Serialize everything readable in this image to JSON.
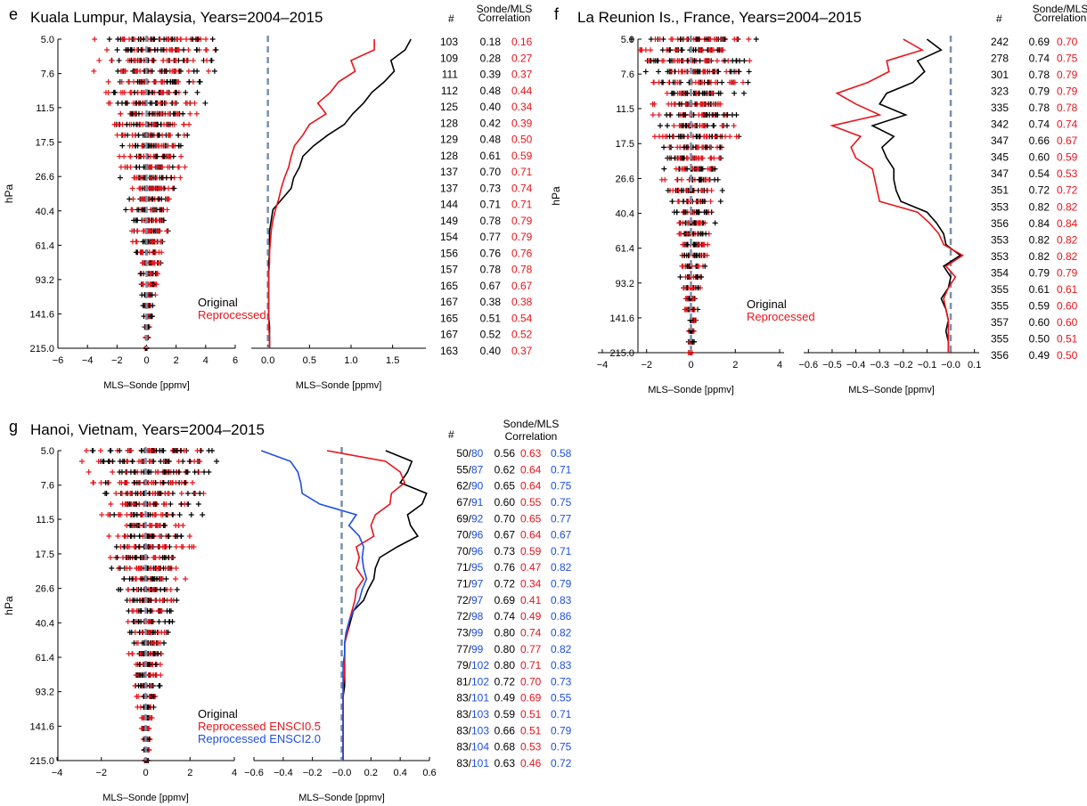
{
  "colors": {
    "original": "#000000",
    "reprocessed": "#e8141b",
    "ensci2": "#1e4fe0",
    "zero_line": "#7891aa"
  },
  "pressure_levels": [
    "5.0",
    "7.6",
    "11.5",
    "17.5",
    "26.6",
    "40.4",
    "61.4",
    "93.2",
    "141.6",
    "215.0"
  ],
  "chart_data": [
    {
      "panel": "e",
      "type": "scatter+line",
      "title": "Kuala Lumpur, Malaysia, Years=2004–2015",
      "ylabel": "hPa",
      "ylim": [
        215.0,
        5.0
      ],
      "yscale": "log",
      "scatter": {
        "xlabel": "MLS–Sonde [ppmv]",
        "xlim": [
          -6,
          6
        ],
        "xticks": [
          "−6",
          "−4",
          "−2",
          "0",
          "2",
          "4",
          "6"
        ]
      },
      "profile": {
        "xlabel": "MLS–Sonde [ppmv]",
        "xlim": [
          -0.2,
          1.9
        ],
        "xticks": [
          "0.0",
          "0.5",
          "1.0",
          "1.5"
        ],
        "xtick_values": [
          0,
          0.5,
          1.0,
          1.5
        ]
      },
      "legend": [
        "Original",
        "Reprocessed"
      ],
      "table_header": {
        "n": "#",
        "corr_1": "Sonde/MLS",
        "corr_2": "Correlation"
      },
      "rows": [
        {
          "n": "103",
          "orig": "0.18",
          "rep": "0.16"
        },
        {
          "n": "109",
          "orig": "0.28",
          "rep": "0.27"
        },
        {
          "n": "111",
          "orig": "0.39",
          "rep": "0.37"
        },
        {
          "n": "112",
          "orig": "0.48",
          "rep": "0.44"
        },
        {
          "n": "125",
          "orig": "0.40",
          "rep": "0.34"
        },
        {
          "n": "128",
          "orig": "0.42",
          "rep": "0.39"
        },
        {
          "n": "129",
          "orig": "0.48",
          "rep": "0.50"
        },
        {
          "n": "128",
          "orig": "0.61",
          "rep": "0.59"
        },
        {
          "n": "137",
          "orig": "0.70",
          "rep": "0.71"
        },
        {
          "n": "137",
          "orig": "0.73",
          "rep": "0.74"
        },
        {
          "n": "144",
          "orig": "0.71",
          "rep": "0.71"
        },
        {
          "n": "149",
          "orig": "0.78",
          "rep": "0.79"
        },
        {
          "n": "154",
          "orig": "0.77",
          "rep": "0.79"
        },
        {
          "n": "156",
          "orig": "0.76",
          "rep": "0.76"
        },
        {
          "n": "157",
          "orig": "0.78",
          "rep": "0.78"
        },
        {
          "n": "165",
          "orig": "0.67",
          "rep": "0.67"
        },
        {
          "n": "167",
          "orig": "0.38",
          "rep": "0.38"
        },
        {
          "n": "165",
          "orig": "0.51",
          "rep": "0.54"
        },
        {
          "n": "167",
          "orig": "0.52",
          "rep": "0.52"
        },
        {
          "n": "163",
          "orig": "0.40",
          "rep": "0.37"
        }
      ],
      "series": [
        {
          "name": "Original",
          "color": "black",
          "x": [
            1.72,
            1.65,
            1.48,
            1.52,
            1.4,
            1.25,
            1.15,
            1.02,
            0.92,
            0.72,
            0.55,
            0.42,
            0.38,
            0.31,
            0.28,
            0.17,
            0.06,
            0.04,
            0.02,
            0.02,
            0.02,
            0.01,
            0.01,
            0.01,
            0.01,
            0.01,
            0.01,
            0.02,
            0.02,
            0.02
          ]
        },
        {
          "name": "Reprocessed",
          "color": "red",
          "x": [
            1.28,
            1.28,
            1.0,
            1.05,
            0.85,
            0.75,
            0.6,
            0.7,
            0.5,
            0.42,
            0.32,
            0.28,
            0.25,
            0.2,
            0.16,
            0.13,
            0.09,
            0.06,
            0.04,
            0.03,
            0.02,
            0.02,
            0.01,
            0.01,
            0.01,
            0.01,
            0.01,
            0.01,
            0.02,
            0.02
          ]
        }
      ]
    },
    {
      "panel": "f",
      "type": "scatter+line",
      "title": "La Reunion Is., France, Years=2004–2015",
      "ylabel": "hPa",
      "ylim": [
        215.0,
        5.0
      ],
      "yscale": "log",
      "scatter": {
        "xlabel": "MLS–Sonde [ppmv]",
        "xlim": [
          -4.2,
          4.2
        ],
        "xticks": [
          "−4",
          "−2",
          "0",
          "2",
          "4"
        ]
      },
      "profile": {
        "xlabel": "MLS–Sonde [ppmv]",
        "xlim": [
          -0.62,
          0.12
        ],
        "xticks": [
          "−0.6",
          "−0.5",
          "−0.4",
          "−0.3",
          "−0.2",
          "−0.1",
          "−0.0",
          "0.1"
        ],
        "xtick_values": [
          -0.6,
          -0.5,
          -0.4,
          -0.3,
          -0.2,
          -0.1,
          0,
          0.1
        ]
      },
      "legend": [
        "Original",
        "Reprocessed"
      ],
      "table_header": {
        "n": "#",
        "corr_1": "Sonde/MLS",
        "corr_2": "Correlation"
      },
      "rows": [
        {
          "n": "242",
          "orig": "0.69",
          "rep": "0.70"
        },
        {
          "n": "278",
          "orig": "0.74",
          "rep": "0.75"
        },
        {
          "n": "301",
          "orig": "0.78",
          "rep": "0.79"
        },
        {
          "n": "323",
          "orig": "0.79",
          "rep": "0.79"
        },
        {
          "n": "335",
          "orig": "0.78",
          "rep": "0.78"
        },
        {
          "n": "342",
          "orig": "0.74",
          "rep": "0.74"
        },
        {
          "n": "347",
          "orig": "0.66",
          "rep": "0.67"
        },
        {
          "n": "345",
          "orig": "0.60",
          "rep": "0.59"
        },
        {
          "n": "347",
          "orig": "0.54",
          "rep": "0.53"
        },
        {
          "n": "351",
          "orig": "0.72",
          "rep": "0.72"
        },
        {
          "n": "353",
          "orig": "0.82",
          "rep": "0.82"
        },
        {
          "n": "356",
          "orig": "0.84",
          "rep": "0.84"
        },
        {
          "n": "353",
          "orig": "0.82",
          "rep": "0.82"
        },
        {
          "n": "353",
          "orig": "0.82",
          "rep": "0.82"
        },
        {
          "n": "354",
          "orig": "0.79",
          "rep": "0.79"
        },
        {
          "n": "355",
          "orig": "0.61",
          "rep": "0.61"
        },
        {
          "n": "355",
          "orig": "0.59",
          "rep": "0.60"
        },
        {
          "n": "357",
          "orig": "0.60",
          "rep": "0.60"
        },
        {
          "n": "355",
          "orig": "0.50",
          "rep": "0.51"
        },
        {
          "n": "356",
          "orig": "0.49",
          "rep": "0.50"
        }
      ],
      "series": [
        {
          "name": "Original",
          "color": "black",
          "x": [
            -0.1,
            -0.04,
            -0.14,
            -0.11,
            -0.16,
            -0.27,
            -0.3,
            -0.19,
            -0.33,
            -0.24,
            -0.29,
            -0.27,
            -0.24,
            -0.24,
            -0.23,
            -0.21,
            -0.1,
            -0.06,
            -0.03,
            -0.02,
            0.04,
            -0.03,
            0.0,
            -0.01,
            -0.04,
            -0.02,
            -0.01,
            -0.02,
            -0.01,
            -0.01
          ]
        },
        {
          "name": "Reprocessed",
          "color": "red",
          "x": [
            -0.2,
            -0.12,
            -0.27,
            -0.26,
            -0.35,
            -0.48,
            -0.4,
            -0.3,
            -0.5,
            -0.38,
            -0.42,
            -0.4,
            -0.33,
            -0.32,
            -0.31,
            -0.3,
            -0.14,
            -0.09,
            -0.05,
            -0.03,
            0.05,
            -0.02,
            0.02,
            -0.01,
            -0.03,
            -0.02,
            -0.01,
            -0.01,
            -0.01,
            -0.01
          ]
        }
      ]
    },
    {
      "panel": "g",
      "type": "scatter+line",
      "title": "Hanoi, Vietnam, Years=2004–2015",
      "ylabel": "hPa",
      "ylim": [
        215.0,
        5.0
      ],
      "yscale": "log",
      "scatter": {
        "xlabel": "MLS–Sonde [ppmv]",
        "xlim": [
          -4.0,
          4.0
        ],
        "xticks": [
          "−4",
          "−2",
          "0",
          "2",
          "4"
        ]
      },
      "profile": {
        "xlabel": "MLS–Sonde [ppmv]",
        "xlim": [
          -0.6,
          0.6
        ],
        "xticks": [
          "−0.6",
          "−0.4",
          "−0.2",
          "−0.0",
          "0.2",
          "0.4",
          "0.6"
        ],
        "xtick_values": [
          -0.6,
          -0.4,
          -0.2,
          0,
          0.2,
          0.4,
          0.6
        ]
      },
      "legend": [
        "Original",
        "Reprocessed ENSCI0.5",
        "Reprocessed ENSCI2.0"
      ],
      "table_header": {
        "n": "#",
        "corr_1": "Sonde/MLS",
        "corr_2": "Correlation"
      },
      "rows": [
        {
          "n_a": "50/",
          "n_b": "80",
          "orig": "0.56",
          "rep": "0.63",
          "rep2": "0.58"
        },
        {
          "n_a": "55/",
          "n_b": "87",
          "orig": "0.62",
          "rep": "0.64",
          "rep2": "0.71"
        },
        {
          "n_a": "62/",
          "n_b": "90",
          "orig": "0.65",
          "rep": "0.64",
          "rep2": "0.75"
        },
        {
          "n_a": "67/",
          "n_b": "91",
          "orig": "0.60",
          "rep": "0.55",
          "rep2": "0.75"
        },
        {
          "n_a": "69/",
          "n_b": "92",
          "orig": "0.70",
          "rep": "0.65",
          "rep2": "0.77"
        },
        {
          "n_a": "70/",
          "n_b": "96",
          "orig": "0.67",
          "rep": "0.64",
          "rep2": "0.67"
        },
        {
          "n_a": "70/",
          "n_b": "96",
          "orig": "0.73",
          "rep": "0.59",
          "rep2": "0.71"
        },
        {
          "n_a": "71/",
          "n_b": "95",
          "orig": "0.76",
          "rep": "0.47",
          "rep2": "0.82"
        },
        {
          "n_a": "71/",
          "n_b": "97",
          "orig": "0.72",
          "rep": "0.34",
          "rep2": "0.79"
        },
        {
          "n_a": "72/",
          "n_b": "97",
          "orig": "0.69",
          "rep": "0.41",
          "rep2": "0.83"
        },
        {
          "n_a": "72/",
          "n_b": "98",
          "orig": "0.74",
          "rep": "0.49",
          "rep2": "0.86"
        },
        {
          "n_a": "73/",
          "n_b": "99",
          "orig": "0.80",
          "rep": "0.74",
          "rep2": "0.82"
        },
        {
          "n_a": "77/",
          "n_b": "99",
          "orig": "0.80",
          "rep": "0.77",
          "rep2": "0.82"
        },
        {
          "n_a": "79/",
          "n_b": "102",
          "orig": "0.80",
          "rep": "0.71",
          "rep2": "0.83"
        },
        {
          "n_a": "81/",
          "n_b": "102",
          "orig": "0.72",
          "rep": "0.70",
          "rep2": "0.73"
        },
        {
          "n_a": "83/",
          "n_b": "101",
          "orig": "0.49",
          "rep": "0.69",
          "rep2": "0.55"
        },
        {
          "n_a": "83/",
          "n_b": "103",
          "orig": "0.59",
          "rep": "0.51",
          "rep2": "0.71"
        },
        {
          "n_a": "83/",
          "n_b": "103",
          "orig": "0.66",
          "rep": "0.51",
          "rep2": "0.79"
        },
        {
          "n_a": "83/",
          "n_b": "104",
          "orig": "0.68",
          "rep": "0.53",
          "rep2": "0.75"
        },
        {
          "n_a": "83/",
          "n_b": "101",
          "orig": "0.63",
          "rep": "0.46",
          "rep2": "0.72"
        }
      ],
      "series": [
        {
          "name": "Original",
          "color": "black",
          "x": [
            0.3,
            0.48,
            0.45,
            0.4,
            0.58,
            0.55,
            0.45,
            0.47,
            0.52,
            0.38,
            0.26,
            0.23,
            0.22,
            0.18,
            0.15,
            0.08,
            0.06,
            0.04,
            0.02,
            0.02,
            0.02,
            0.02,
            0.02,
            0.01,
            0.01,
            0.01,
            0.01,
            0.01,
            0.01,
            0.01
          ]
        },
        {
          "name": "Reprocessed ENSCI0.5",
          "color": "red",
          "x": [
            -0.1,
            0.3,
            0.4,
            0.43,
            0.34,
            0.33,
            0.23,
            0.2,
            0.22,
            0.1,
            0.12,
            0.1,
            0.15,
            0.1,
            0.09,
            0.07,
            0.05,
            0.04,
            0.02,
            0.02,
            0.02,
            0.02,
            0.01,
            0.01,
            0.01,
            0.01,
            0.01,
            0.01,
            0.01,
            0.01
          ]
        },
        {
          "name": "Reprocessed ENSCI2.0",
          "color": "blue",
          "x": [
            -0.55,
            -0.35,
            -0.3,
            -0.28,
            -0.27,
            -0.15,
            0.1,
            0.05,
            0.12,
            0.15,
            0.14,
            0.15,
            0.17,
            0.14,
            0.12,
            0.08,
            0.05,
            0.03,
            0.02,
            0.02,
            0.01,
            0.01,
            0.01,
            0.01,
            0.01,
            0.01,
            0.01,
            0.01,
            0.01,
            0.01
          ]
        }
      ]
    }
  ]
}
